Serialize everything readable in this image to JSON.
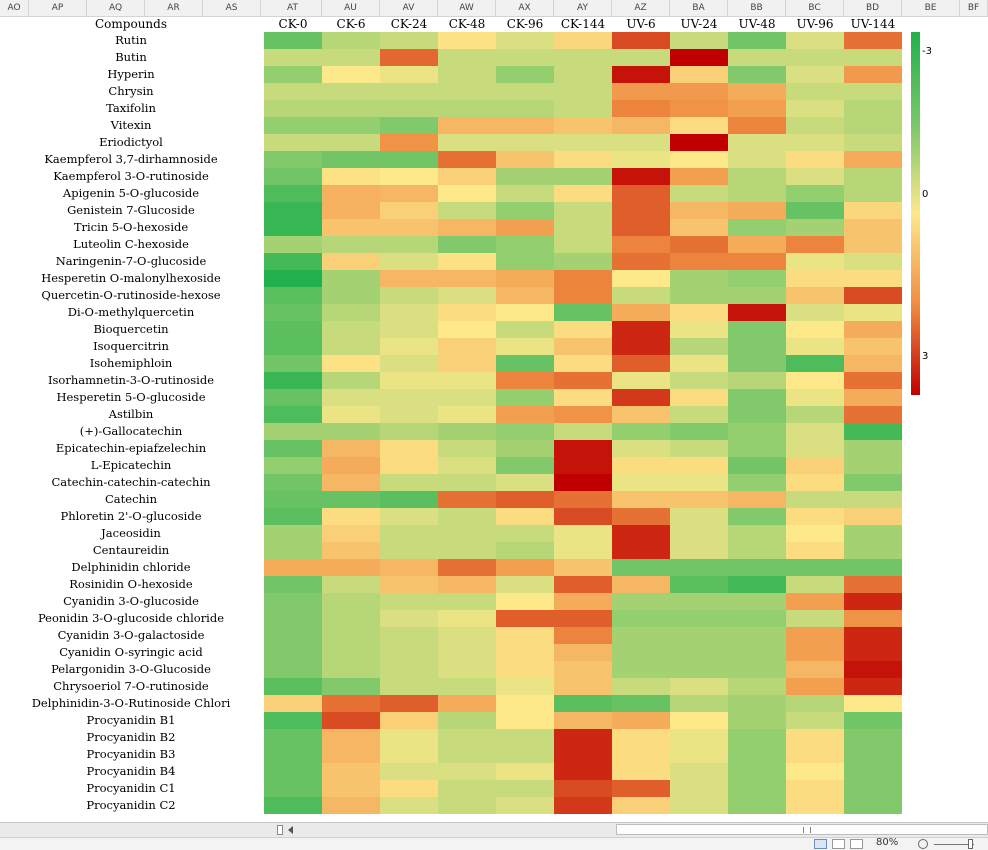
{
  "sheet_columns": [
    "AO",
    "AP",
    "AQ",
    "AR",
    "AS",
    "AT",
    "AU",
    "AV",
    "AW",
    "AX",
    "AY",
    "AZ",
    "BA",
    "BB",
    "BC",
    "BD",
    "BE",
    "BF"
  ],
  "corner_label": "Compounds",
  "sample_columns": [
    "CK-0",
    "CK-6",
    "CK-24",
    "CK-48",
    "CK-96",
    "CK-144",
    "UV-6",
    "UV-24",
    "UV-48",
    "UV-96",
    "UV-144"
  ],
  "legend": {
    "top_label": "-3",
    "mid_label": "0",
    "bottom_label": "3",
    "colors": [
      "#21b04d",
      "#78c768",
      "#fde88a",
      "#ef8d42",
      "#c00000"
    ]
  },
  "zoom": "80%",
  "chart_data": {
    "type": "heatmap",
    "x_categories": [
      "CK-0",
      "CK-6",
      "CK-24",
      "CK-48",
      "CK-96",
      "CK-144",
      "UV-6",
      "UV-24",
      "UV-48",
      "UV-96",
      "UV-144"
    ],
    "color_range": [
      -3,
      3
    ],
    "rows": [
      {
        "name": "Rutin",
        "values": [
          -1.8,
          -0.8,
          -0.6,
          0.1,
          -0.4,
          0.3,
          2.2,
          -0.6,
          -1.6,
          -0.4,
          1.8
        ]
      },
      {
        "name": "Butin",
        "values": [
          -0.6,
          -0.6,
          1.9,
          -0.6,
          -0.6,
          -0.6,
          -0.6,
          3.0,
          -0.6,
          -0.6,
          -0.6
        ]
      },
      {
        "name": "Hyperin",
        "values": [
          -1.2,
          0.0,
          -0.2,
          -0.6,
          -1.2,
          -0.6,
          2.8,
          0.4,
          -1.4,
          -0.4,
          1.3
        ]
      },
      {
        "name": "Chrysin",
        "values": [
          -0.6,
          -0.6,
          -0.6,
          -0.6,
          -0.6,
          -0.6,
          1.3,
          1.3,
          1.0,
          -0.6,
          -0.6
        ]
      },
      {
        "name": "Taxifolin",
        "values": [
          -0.8,
          -0.8,
          -0.8,
          -0.8,
          -0.8,
          -0.6,
          1.6,
          1.4,
          1.2,
          -0.4,
          -0.8
        ]
      },
      {
        "name": "Vitexin",
        "values": [
          -1.2,
          -1.2,
          -1.4,
          0.8,
          0.8,
          0.6,
          0.8,
          0.2,
          1.6,
          -0.6,
          -0.8
        ]
      },
      {
        "name": "Eriodictyol",
        "values": [
          -0.6,
          -0.6,
          1.4,
          -0.4,
          -0.4,
          -0.4,
          -0.4,
          3.0,
          -0.4,
          -0.4,
          -0.6
        ]
      },
      {
        "name": "Kaempferol 3,7-dirhamnoside",
        "values": [
          -1.4,
          -1.6,
          -1.6,
          1.8,
          0.6,
          0.2,
          -0.2,
          0.0,
          -0.4,
          0.2,
          1.0
        ]
      },
      {
        "name": "Kaempferol 3-O-rutinoside",
        "values": [
          -1.6,
          0.1,
          0.0,
          0.4,
          -1.0,
          -1.0,
          2.8,
          1.2,
          -0.8,
          -0.4,
          -0.8
        ]
      },
      {
        "name": "Apigenin 5-O-glucoside",
        "values": [
          -2.2,
          0.9,
          0.8,
          0.0,
          -0.6,
          0.2,
          2.0,
          -0.6,
          -0.8,
          -1.2,
          -0.8
        ]
      },
      {
        "name": "Genistein 7-Glucoside",
        "values": [
          -2.6,
          0.9,
          0.4,
          -0.6,
          -1.2,
          -0.6,
          2.0,
          0.8,
          1.0,
          -1.8,
          0.3
        ]
      },
      {
        "name": "Tricin 5-O-hexoside",
        "values": [
          -2.6,
          0.6,
          0.6,
          0.8,
          1.2,
          -0.6,
          2.0,
          0.6,
          -1.2,
          -1.0,
          0.6
        ]
      },
      {
        "name": "Luteolin C-hexoside",
        "values": [
          -1.0,
          -0.8,
          -0.8,
          -1.4,
          -1.2,
          -0.6,
          1.6,
          1.8,
          1.0,
          1.6,
          0.6
        ]
      },
      {
        "name": "Naringenin-7-O-glucoside",
        "values": [
          -2.4,
          0.4,
          -0.4,
          0.1,
          -1.2,
          -1.0,
          1.8,
          1.6,
          1.6,
          -0.2,
          -0.4
        ]
      },
      {
        "name": "Hesperetin O-malonylhexoside",
        "values": [
          -3.0,
          -1.0,
          0.8,
          0.8,
          1.0,
          1.6,
          0.0,
          -1.0,
          -1.2,
          0.2,
          0.2
        ]
      },
      {
        "name": "Quercetin-O-rutinoside-hexose",
        "values": [
          -2.0,
          -1.0,
          -0.6,
          -0.4,
          0.8,
          1.6,
          -0.6,
          -1.0,
          -1.0,
          0.6,
          2.2
        ]
      },
      {
        "name": "Di-O-methylquercetin",
        "values": [
          -1.8,
          -0.8,
          -0.4,
          0.2,
          0.0,
          -1.8,
          1.0,
          0.2,
          2.8,
          -0.4,
          -0.2
        ]
      },
      {
        "name": "Bioquercetin",
        "values": [
          -2.0,
          -0.6,
          -0.4,
          0.0,
          -0.6,
          0.2,
          2.6,
          -0.2,
          -1.4,
          0.0,
          1.0
        ]
      },
      {
        "name": "Isoquercitrin",
        "values": [
          -2.0,
          -0.6,
          -0.2,
          0.4,
          -0.2,
          0.6,
          2.6,
          -0.8,
          -1.4,
          -0.2,
          0.6
        ]
      },
      {
        "name": "Isohemiphloin",
        "values": [
          -1.6,
          0.1,
          -0.4,
          0.4,
          -1.8,
          0.2,
          2.0,
          -0.2,
          -1.4,
          -2.2,
          0.8
        ]
      },
      {
        "name": "Isorhamnetin-3-O-rutinoside",
        "values": [
          -2.6,
          -0.8,
          -0.2,
          -0.2,
          1.6,
          1.8,
          -0.2,
          -0.6,
          -0.8,
          0.0,
          1.8
        ]
      },
      {
        "name": "Hesperetin 5-O-glucoside",
        "values": [
          -1.8,
          -0.4,
          -0.4,
          -0.4,
          -1.2,
          0.2,
          2.4,
          0.2,
          -1.4,
          -0.2,
          1.0
        ]
      },
      {
        "name": "Astilbin",
        "values": [
          -2.2,
          -0.2,
          -0.4,
          -0.2,
          1.2,
          1.4,
          0.6,
          -0.6,
          -1.4,
          -0.8,
          1.8
        ]
      },
      {
        "name": "(+)-Gallocatechin",
        "values": [
          -1.0,
          -1.0,
          -0.8,
          -1.0,
          -1.2,
          -0.6,
          -1.2,
          -1.4,
          -1.2,
          -0.4,
          -2.4
        ]
      },
      {
        "name": "Epicatechin-epiafzelechin",
        "values": [
          -1.8,
          0.8,
          0.2,
          -0.6,
          -1.0,
          2.8,
          -0.4,
          -0.6,
          -1.2,
          -0.4,
          -1.0
        ]
      },
      {
        "name": "L-Epicatechin",
        "values": [
          -1.2,
          1.0,
          0.2,
          -0.4,
          -1.4,
          2.8,
          0.2,
          0.2,
          -1.6,
          0.4,
          -1.0
        ]
      },
      {
        "name": "Catechin-catechin-catechin",
        "values": [
          -1.6,
          0.8,
          -0.6,
          -0.6,
          -0.4,
          3.0,
          -0.2,
          -0.2,
          -1.2,
          0.2,
          -1.4
        ]
      },
      {
        "name": "Catechin",
        "values": [
          -1.8,
          -1.8,
          -2.0,
          1.8,
          2.0,
          1.8,
          0.6,
          0.6,
          0.8,
          -0.6,
          -0.6
        ]
      },
      {
        "name": "Phloretin 2'-O-glucoside",
        "values": [
          -2.0,
          0.2,
          -0.4,
          -0.6,
          0.2,
          2.2,
          1.8,
          -0.4,
          -1.4,
          0.2,
          0.4
        ]
      },
      {
        "name": "Jaceosidin",
        "values": [
          -1.0,
          0.4,
          -0.6,
          -0.6,
          -0.6,
          -0.2,
          2.6,
          -0.4,
          -0.8,
          0.0,
          -1.0
        ]
      },
      {
        "name": "Centaureidin",
        "values": [
          -1.0,
          0.6,
          -0.6,
          -0.6,
          -0.8,
          -0.2,
          2.6,
          -0.4,
          -0.8,
          0.2,
          -1.0
        ]
      },
      {
        "name": "Delphinidin chloride",
        "values": [
          1.0,
          1.0,
          0.8,
          1.8,
          1.2,
          0.6,
          -1.6,
          -1.6,
          -1.6,
          -1.6,
          -1.6
        ]
      },
      {
        "name": "Rosinidin O-hexoside",
        "values": [
          -1.6,
          -0.6,
          0.6,
          0.8,
          -0.4,
          2.0,
          0.8,
          -2.0,
          -2.4,
          -0.6,
          1.8
        ]
      },
      {
        "name": "Cyanidin 3-O-glucoside",
        "values": [
          -1.4,
          -0.8,
          -0.6,
          -0.6,
          0.0,
          1.0,
          -1.0,
          -1.0,
          -1.0,
          1.2,
          2.6
        ]
      },
      {
        "name": "Peonidin 3-O-glucoside chloride",
        "values": [
          -1.4,
          -0.8,
          -0.4,
          -0.2,
          2.0,
          2.0,
          -1.2,
          -1.2,
          -1.2,
          -0.6,
          1.4
        ]
      },
      {
        "name": "Cyanidin 3-O-galactoside",
        "values": [
          -1.4,
          -0.8,
          -0.6,
          -0.4,
          0.2,
          1.6,
          -1.0,
          -1.0,
          -1.0,
          1.2,
          2.6
        ]
      },
      {
        "name": "Cyanidin O-syringic acid",
        "values": [
          -1.4,
          -0.8,
          -0.6,
          -0.4,
          0.2,
          0.8,
          -1.0,
          -1.0,
          -1.0,
          1.2,
          2.6
        ]
      },
      {
        "name": "Pelargonidin 3-O-Glucoside",
        "values": [
          -1.4,
          -0.8,
          -0.6,
          -0.4,
          0.2,
          0.6,
          -1.0,
          -1.0,
          -1.0,
          0.8,
          2.8
        ]
      },
      {
        "name": "Chrysoeriol 7-O-rutinoside",
        "values": [
          -2.0,
          -1.4,
          -0.6,
          -0.6,
          -0.2,
          0.6,
          -0.6,
          -0.4,
          -0.8,
          1.2,
          2.6
        ]
      },
      {
        "name": "Delphinidin-3-O-Rutinoside Chlori",
        "values": [
          0.4,
          1.8,
          2.0,
          1.0,
          0.0,
          -2.0,
          -1.8,
          -0.8,
          -1.0,
          -0.8,
          0.0
        ]
      },
      {
        "name": "Procyanidin B1",
        "values": [
          -2.2,
          2.2,
          0.4,
          -0.8,
          0.0,
          0.8,
          1.0,
          0.0,
          -1.0,
          -0.6,
          -1.6
        ]
      },
      {
        "name": "Procyanidin B2",
        "values": [
          -1.8,
          0.8,
          -0.2,
          -0.6,
          -0.6,
          2.6,
          0.2,
          -0.2,
          -1.2,
          0.2,
          -1.4
        ]
      },
      {
        "name": "Procyanidin B3",
        "values": [
          -1.8,
          0.8,
          -0.2,
          -0.6,
          -0.6,
          2.6,
          0.2,
          -0.2,
          -1.2,
          0.2,
          -1.4
        ]
      },
      {
        "name": "Procyanidin B4",
        "values": [
          -1.8,
          0.6,
          -0.4,
          -0.4,
          -0.2,
          2.6,
          0.2,
          -0.4,
          -1.2,
          0.0,
          -1.4
        ]
      },
      {
        "name": "Procyanidin C1",
        "values": [
          -1.8,
          0.6,
          0.2,
          -0.6,
          -0.6,
          2.2,
          2.0,
          -0.4,
          -1.2,
          0.2,
          -1.4
        ]
      },
      {
        "name": "Procyanidin C2",
        "values": [
          -2.2,
          0.8,
          -0.4,
          -0.6,
          -0.4,
          2.4,
          0.4,
          -0.4,
          -1.2,
          0.2,
          -1.4
        ]
      }
    ]
  }
}
